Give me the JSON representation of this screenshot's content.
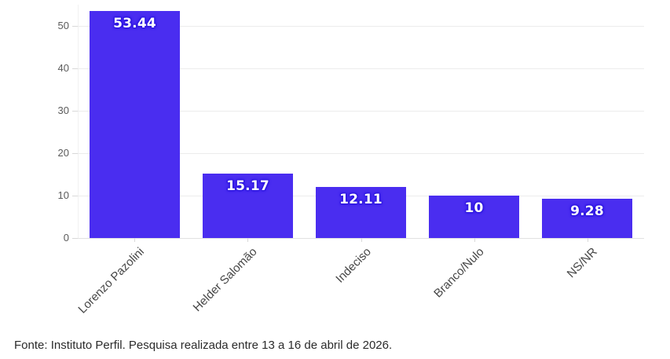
{
  "chart_data": {
    "type": "bar",
    "categories": [
      "Lorenzo Pazolini",
      "Helder Salomão",
      "Indeciso",
      "Branco/Nulo",
      "NS/NR"
    ],
    "values": [
      53.44,
      15.17,
      12.11,
      10,
      9.28
    ],
    "value_labels": [
      "53.44",
      "15.17",
      "12.11",
      "10",
      "9.28"
    ],
    "title": "",
    "xlabel": "",
    "ylabel": "",
    "ylim": [
      0,
      55
    ],
    "yticks": [
      0,
      10,
      20,
      30,
      40,
      50
    ],
    "grid": true,
    "legend": "none",
    "colors": {
      "bar": "#4a2df0",
      "value_label_text": "#ffffff",
      "value_label_halo": "#2c15e0",
      "gridline": "#ececec",
      "axis_text": "#5b5b5b",
      "category_text": "#474747"
    }
  },
  "footer": {
    "source_note": "Fonte: Instituto Perfil. Pesquisa realizada entre 13 a 16 de abril de 2026."
  }
}
